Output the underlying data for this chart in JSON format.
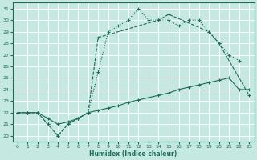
{
  "xlabel": "Humidex (Indice chaleur)",
  "bg_color": "#c5e8e0",
  "line_color": "#1a6b5a",
  "grid_color": "#b0d8cc",
  "xlim": [
    -0.5,
    23.5
  ],
  "ylim": [
    19.5,
    31.5
  ],
  "yticks": [
    20,
    21,
    22,
    23,
    24,
    25,
    26,
    27,
    28,
    29,
    30,
    31
  ],
  "xticks": [
    0,
    1,
    2,
    3,
    4,
    5,
    6,
    7,
    8,
    9,
    10,
    11,
    12,
    13,
    14,
    15,
    16,
    17,
    18,
    19,
    20,
    21,
    22,
    23
  ],
  "line1_x": [
    0,
    1,
    2,
    3,
    4,
    5,
    6,
    7,
    8,
    9,
    10,
    11,
    12,
    13,
    14,
    15,
    16,
    17,
    18,
    19,
    20,
    21,
    22
  ],
  "line1_y": [
    22,
    22,
    22,
    21,
    20,
    21,
    21.5,
    22,
    25.5,
    29,
    29.5,
    30,
    31,
    30,
    30,
    30,
    29.5,
    30,
    30,
    29,
    28,
    27,
    26.5
  ],
  "line2_x": [
    0,
    1,
    2,
    3,
    4,
    5,
    6,
    7,
    8,
    14,
    15,
    19,
    20,
    23
  ],
  "line2_y": [
    22,
    22,
    22,
    21,
    20,
    21,
    21.5,
    22,
    28.5,
    30,
    30.5,
    29,
    28,
    23.5
  ],
  "line3_x": [
    0,
    1,
    2,
    3,
    4,
    5,
    6,
    7,
    8,
    9,
    10,
    11,
    12,
    13,
    14,
    15,
    16,
    17,
    18,
    19,
    20,
    21,
    22,
    23
  ],
  "line3_y": [
    22,
    22,
    22,
    21.5,
    21,
    21.2,
    21.5,
    22,
    22.2,
    22.4,
    22.6,
    22.9,
    23.1,
    23.3,
    23.5,
    23.7,
    24.0,
    24.2,
    24.4,
    24.6,
    24.8,
    25.0,
    24.0,
    24.0
  ]
}
